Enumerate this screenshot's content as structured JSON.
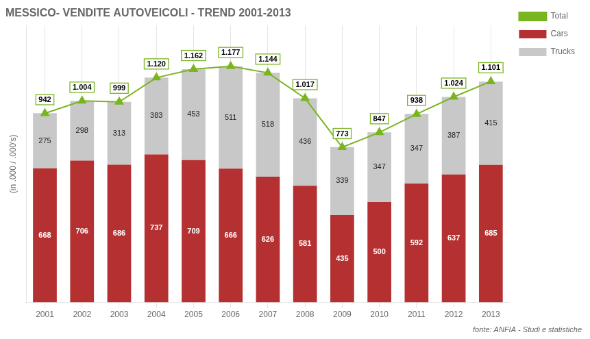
{
  "chart_data": {
    "type": "bar",
    "title": "MESSICO- VENDITE AUTOVEICOLI - TREND 2001-2013",
    "ylabel": "(in .000 / .000's)",
    "source": "fonte: ANFIA - Studi e statistiche",
    "categories": [
      "2001",
      "2002",
      "2003",
      "2004",
      "2005",
      "2006",
      "2007",
      "2008",
      "2009",
      "2010",
      "2011",
      "2012",
      "2013"
    ],
    "series": [
      {
        "name": "Cars",
        "type": "bar",
        "color": "#b53030",
        "values": [
          668,
          706,
          686,
          737,
          709,
          666,
          626,
          581,
          435,
          500,
          592,
          637,
          685
        ]
      },
      {
        "name": "Trucks",
        "type": "bar",
        "color": "#c8c8c8",
        "values": [
          275,
          298,
          313,
          383,
          453,
          511,
          518,
          436,
          339,
          347,
          347,
          387,
          415
        ]
      },
      {
        "name": "Total",
        "type": "line",
        "color": "#7ab520",
        "marker": "triangle",
        "values": [
          942,
          1004,
          999,
          1120,
          1162,
          1177,
          1144,
          1017,
          773,
          847,
          938,
          1024,
          1101
        ],
        "value_labels": [
          "942",
          "1.004",
          "999",
          "1.120",
          "1.162",
          "1.177",
          "1.144",
          "1.017",
          "773",
          "847",
          "938",
          "1.024",
          "1.101"
        ]
      }
    ],
    "stacked": true,
    "data_labels": true,
    "ylim": [
      0,
      1380
    ],
    "yticks": [],
    "grid": true,
    "legend": "right",
    "tick_labels": "x"
  }
}
